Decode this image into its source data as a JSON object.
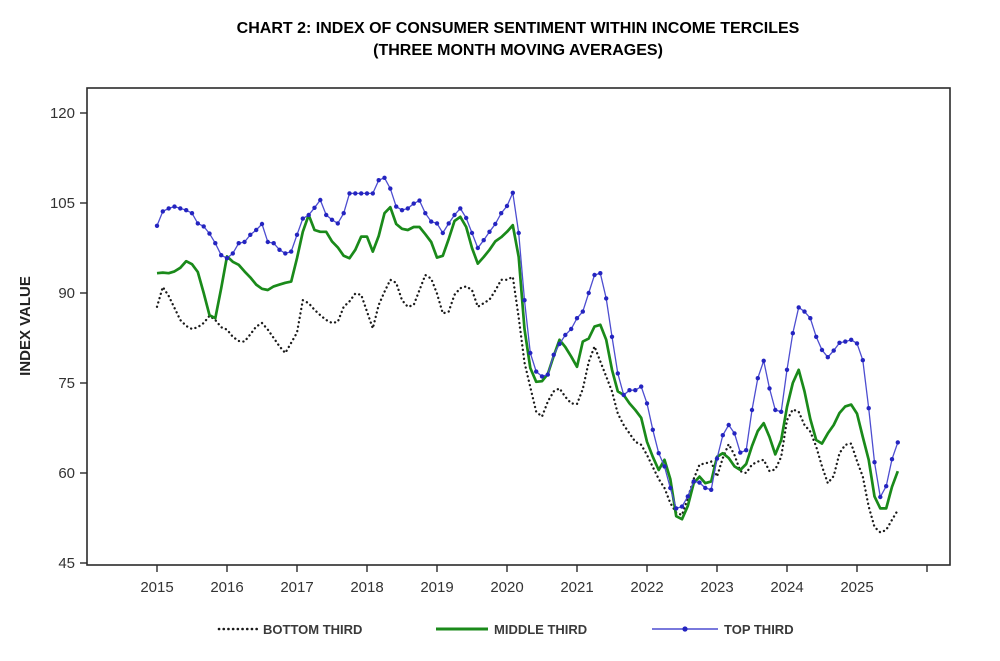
{
  "title": {
    "line1": "CHART 2: INDEX OF CONSUMER SENTIMENT WITHIN INCOME TERCILES",
    "line2": "(THREE MONTH MOVING AVERAGES)"
  },
  "y_axis": {
    "label": "INDEX VALUE",
    "ticks": [
      45,
      60,
      75,
      90,
      105,
      120
    ]
  },
  "x_axis": {
    "tick_labels": [
      "2015",
      "2016",
      "2017",
      "2018",
      "2019",
      "2020",
      "2021",
      "2022",
      "2023",
      "2024",
      "2025"
    ]
  },
  "legend": {
    "items": [
      {
        "label": "BOTTOM THIRD",
        "style": "dotted",
        "color": "#1a1a1a"
      },
      {
        "label": "MIDDLE THIRD",
        "style": "solid",
        "color": "#1a8a1a"
      },
      {
        "label": "TOP THIRD",
        "style": "line-with-marker",
        "color": "#4d4dd0"
      }
    ]
  },
  "chart_data": {
    "type": "line",
    "title": "CHART 2: INDEX OF CONSUMER SENTIMENT WITHIN INCOME TERCILES (THREE MONTH MOVING AVERAGES)",
    "ylabel": "INDEX VALUE",
    "ylim": [
      44.7,
      124.2
    ],
    "y_ticks": [
      45,
      60,
      75,
      90,
      105,
      120
    ],
    "grid": false,
    "legend_position": "bottom",
    "frequency": "monthly",
    "x_start": "2015-01",
    "x_end": "2025-08",
    "x_tick_years": [
      "2015",
      "2016",
      "2017",
      "2018",
      "2019",
      "2020",
      "2021",
      "2022",
      "2023",
      "2024",
      "2025"
    ],
    "series": [
      {
        "name": "BOTTOM THIRD",
        "color": "#1a1a1a",
        "line_style": "dotted",
        "values": [
          87.7,
          91.0,
          89.5,
          87.5,
          85.5,
          84.5,
          84.0,
          84.3,
          85.0,
          86.2,
          85.5,
          84.3,
          83.9,
          82.7,
          82.0,
          81.9,
          83.1,
          84.4,
          85.0,
          83.9,
          82.5,
          81.1,
          80.0,
          81.7,
          83.4,
          88.8,
          88.3,
          87.2,
          86.3,
          85.5,
          85.0,
          85.2,
          87.7,
          88.6,
          89.9,
          89.7,
          86.9,
          84.1,
          88.0,
          90.2,
          92.2,
          91.7,
          88.8,
          87.7,
          88.0,
          90.5,
          93.0,
          92.4,
          89.9,
          86.6,
          86.9,
          89.7,
          90.8,
          91.1,
          90.5,
          87.7,
          88.3,
          88.9,
          90.4,
          92.2,
          92.2,
          92.7,
          85.9,
          78.4,
          74.3,
          70.2,
          69.4,
          71.9,
          73.6,
          74.1,
          72.7,
          71.6,
          71.5,
          74.0,
          78.5,
          81.1,
          78.6,
          76.1,
          73.6,
          69.9,
          68.0,
          66.6,
          65.2,
          64.7,
          63.0,
          61.0,
          59.0,
          57.5,
          55.0,
          53.4,
          53.0,
          55.8,
          59.0,
          61.4,
          61.6,
          61.9,
          59.4,
          62.5,
          64.8,
          63.0,
          60.3,
          60.0,
          61.4,
          61.9,
          62.2,
          60.3,
          60.6,
          62.7,
          68.8,
          70.6,
          70.2,
          68.0,
          66.9,
          64.4,
          61.1,
          58.3,
          59.5,
          63.3,
          64.7,
          64.9,
          62.0,
          59.4,
          54.4,
          51.0,
          50.1,
          50.5,
          52.2,
          53.8
        ]
      },
      {
        "name": "MIDDLE THIRD",
        "color": "#1a8a1a",
        "line_style": "solid",
        "values": [
          93.3,
          93.4,
          93.3,
          93.6,
          94.2,
          95.3,
          94.8,
          93.5,
          90.0,
          86.3,
          85.8,
          90.8,
          96.1,
          95.2,
          94.7,
          93.6,
          92.6,
          91.4,
          90.7,
          90.5,
          91.1,
          91.4,
          91.7,
          91.9,
          95.8,
          100.2,
          103.0,
          100.5,
          100.2,
          100.2,
          98.6,
          97.6,
          96.2,
          95.8,
          97.2,
          99.4,
          99.4,
          96.9,
          99.5,
          103.3,
          104.3,
          101.5,
          100.7,
          100.5,
          101.0,
          101.0,
          99.8,
          98.5,
          95.9,
          96.2,
          99.0,
          102.0,
          102.7,
          101.0,
          97.5,
          94.9,
          96.0,
          97.2,
          98.6,
          99.3,
          100.2,
          101.3,
          96.0,
          84.0,
          77.5,
          75.2,
          75.3,
          76.5,
          79.5,
          82.2,
          81.0,
          79.4,
          77.7,
          81.9,
          82.4,
          84.4,
          84.7,
          82.2,
          77.2,
          73.6,
          73.0,
          71.6,
          70.5,
          69.2,
          65.2,
          62.7,
          60.5,
          62.2,
          59.0,
          52.8,
          52.3,
          54.5,
          58.3,
          59.4,
          58.3,
          58.6,
          62.7,
          63.3,
          62.5,
          61.1,
          60.5,
          61.5,
          64.5,
          67.0,
          68.3,
          66.0,
          63.1,
          65.5,
          71.0,
          75.0,
          77.2,
          73.6,
          69.0,
          65.5,
          64.9,
          66.6,
          68.0,
          70.0,
          71.1,
          71.4,
          69.9,
          66.0,
          62.2,
          56.1,
          54.1,
          54.1,
          57.7,
          60.3
        ]
      },
      {
        "name": "TOP THIRD",
        "color": "#4d4dd0",
        "marker_color": "#2424c0",
        "line_style": "solid-with-markers",
        "values": [
          101.2,
          103.6,
          104.1,
          104.4,
          104.1,
          103.8,
          103.3,
          101.6,
          101.1,
          99.9,
          98.3,
          96.3,
          95.8,
          96.6,
          98.3,
          98.5,
          99.7,
          100.5,
          101.5,
          98.5,
          98.3,
          97.2,
          96.6,
          96.9,
          99.7,
          102.4,
          103.0,
          104.2,
          105.5,
          103.0,
          102.2,
          101.6,
          103.3,
          106.6,
          106.6,
          106.6,
          106.6,
          106.6,
          108.8,
          109.2,
          107.4,
          104.4,
          103.8,
          104.1,
          104.9,
          105.4,
          103.3,
          101.9,
          101.6,
          100.0,
          101.6,
          103.0,
          104.1,
          102.5,
          100.0,
          97.5,
          98.8,
          100.2,
          101.5,
          103.3,
          104.5,
          106.7,
          100.0,
          88.8,
          80.0,
          76.9,
          76.1,
          76.4,
          79.7,
          81.5,
          83.0,
          84.0,
          85.8,
          86.9,
          90.0,
          93.0,
          93.3,
          89.1,
          82.7,
          76.6,
          73.0,
          73.8,
          73.8,
          74.4,
          71.6,
          67.2,
          63.3,
          61.1,
          57.5,
          54.1,
          54.4,
          56.1,
          58.6,
          58.4,
          57.5,
          57.2,
          62.4,
          66.3,
          68.0,
          66.6,
          63.4,
          63.8,
          70.5,
          75.8,
          78.7,
          74.1,
          70.5,
          70.2,
          77.2,
          83.3,
          87.6,
          86.9,
          85.8,
          82.7,
          80.5,
          79.3,
          80.4,
          81.7,
          81.9,
          82.2,
          81.6,
          78.8,
          70.8,
          61.8,
          56.0,
          57.8,
          62.3,
          65.1
        ]
      }
    ]
  }
}
